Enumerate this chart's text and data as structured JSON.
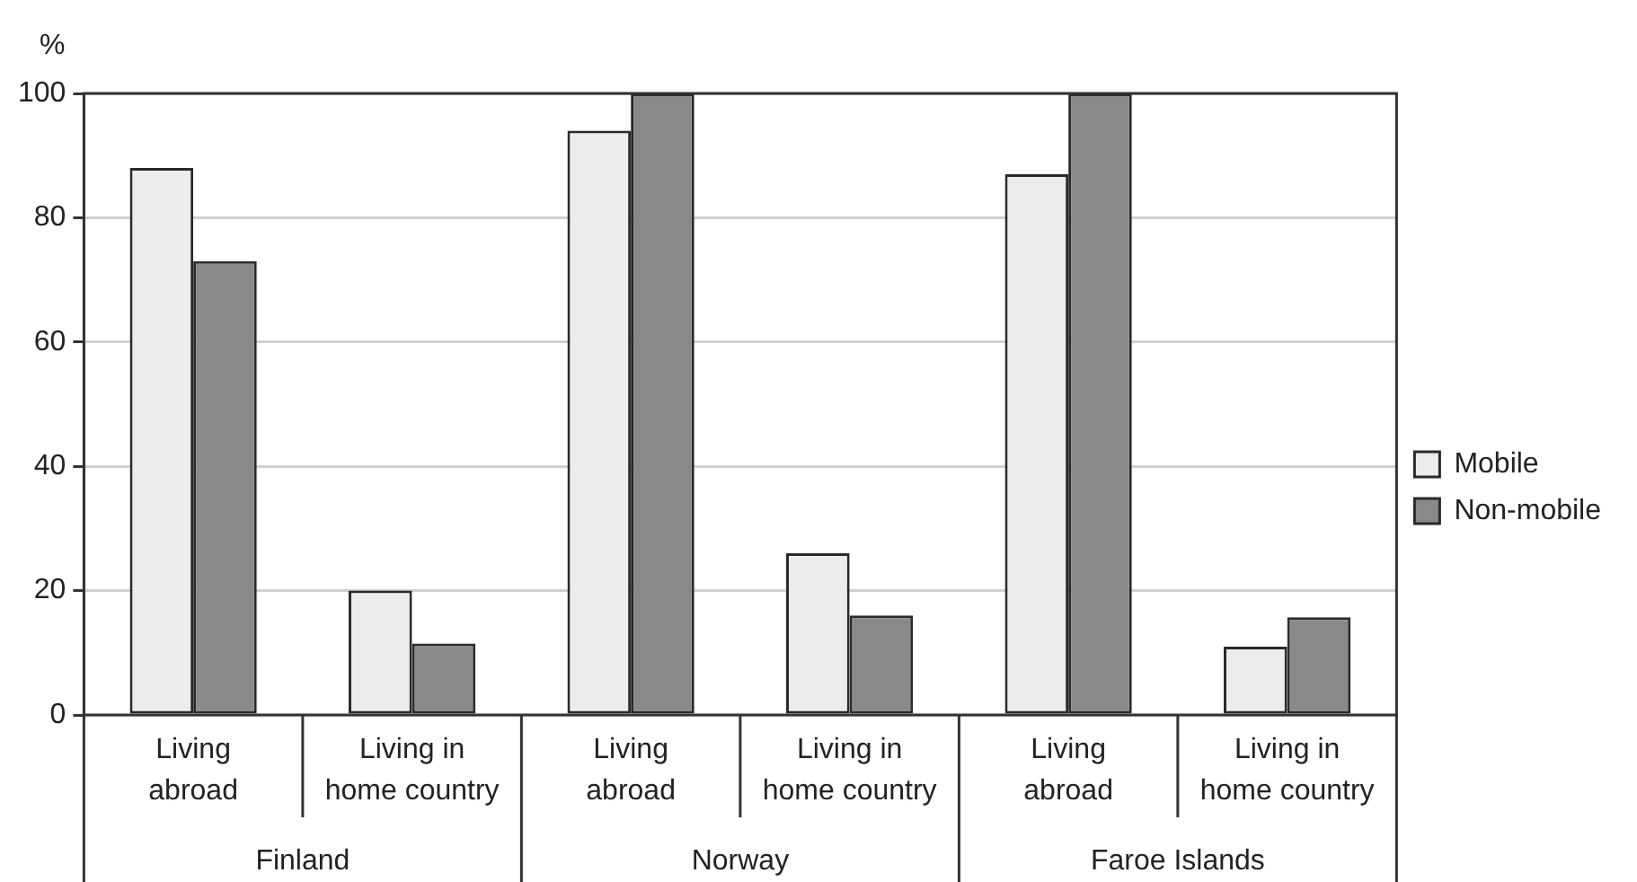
{
  "chart_data": {
    "type": "bar",
    "ylabel": "%",
    "categories": [
      "Living abroad",
      "Living in home country",
      "Living abroad",
      "Living in home country",
      "Living abroad",
      "Living in home country"
    ],
    "series": [
      {
        "name": "Mobile",
        "color": "#ebeceb",
        "values": [
          88,
          20,
          94,
          26,
          87,
          11
        ]
      },
      {
        "name": "Non-mobile",
        "color": "#88898b",
        "values": [
          73,
          11.5,
          100,
          16,
          100,
          15.7
        ]
      }
    ],
    "annotations": [
      "Finland",
      "Norway",
      "Faroe Islands"
    ],
    "ylim": [
      0,
      100
    ],
    "yticks": [
      0,
      20,
      40,
      60,
      80,
      100
    ],
    "grid": "y",
    "legend": "right"
  }
}
